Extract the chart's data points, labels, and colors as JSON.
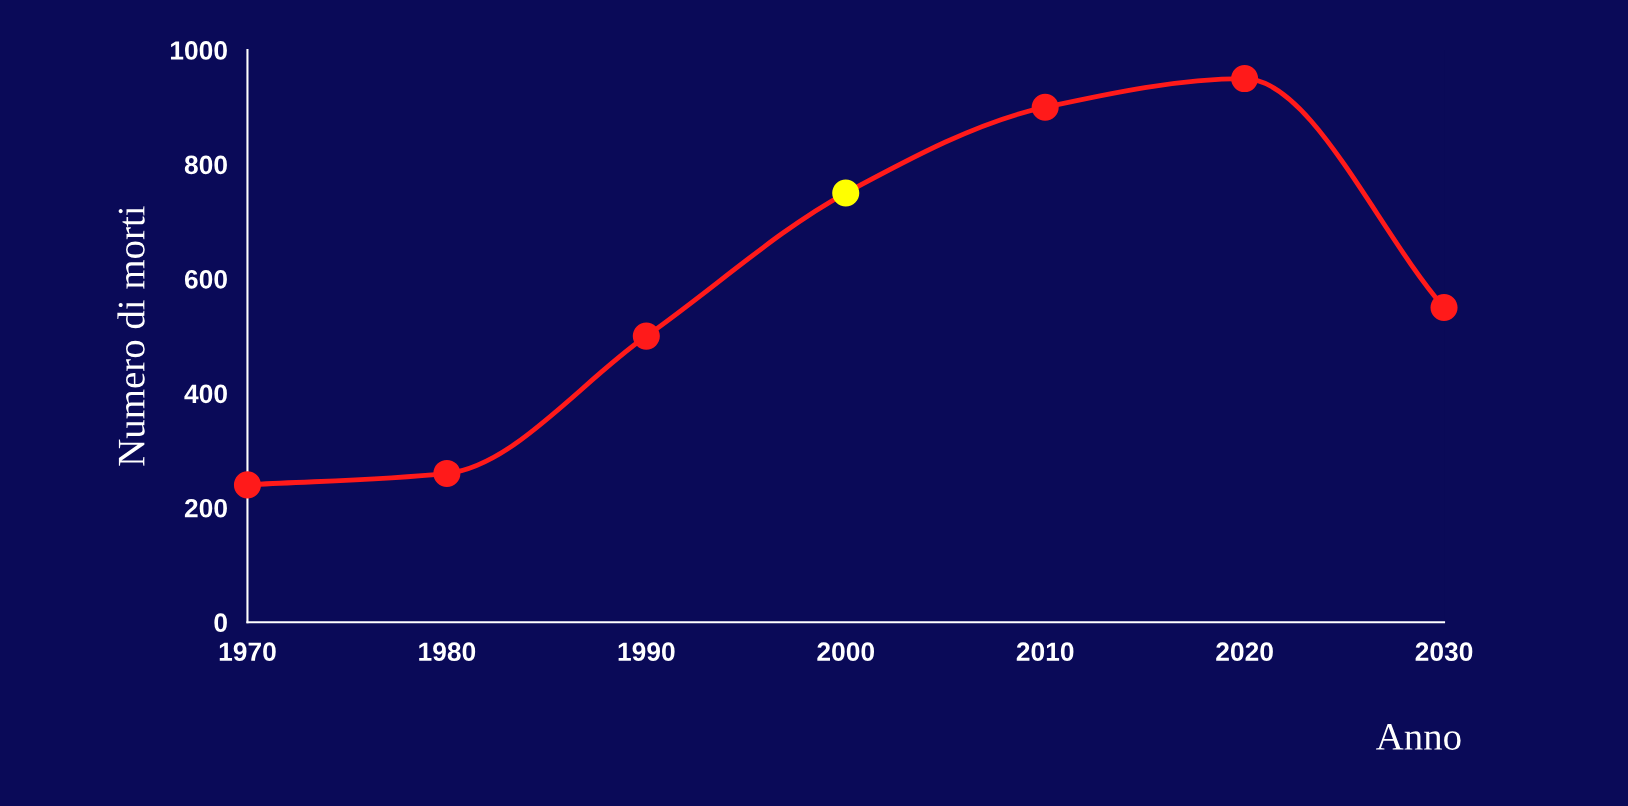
{
  "chart_data": {
    "type": "line",
    "xlabel": "Anno",
    "ylabel": "Numero di morti",
    "x": [
      1970,
      1980,
      1990,
      2000,
      2010,
      2020,
      2030
    ],
    "series": [
      {
        "color": "#ff1a1a",
        "values": [
          240,
          260,
          500,
          750,
          900,
          950,
          550
        ],
        "colors": [
          "#ff1a1a",
          "#ff1a1a",
          "#ff1a1a",
          "#ffff00",
          "#ff1a1a",
          "#ff1a1a",
          "#ff1a1a"
        ]
      }
    ],
    "xlim": [
      1970,
      2030
    ],
    "xticks": [
      1970,
      1980,
      1990,
      2000,
      2010,
      2020,
      2030
    ],
    "ylim": [
      0,
      1000
    ],
    "yticks": [
      0,
      200,
      400,
      600,
      800,
      1000
    ],
    "marker": "circle",
    "line_style": "solid",
    "grid": false,
    "legend": false
  }
}
